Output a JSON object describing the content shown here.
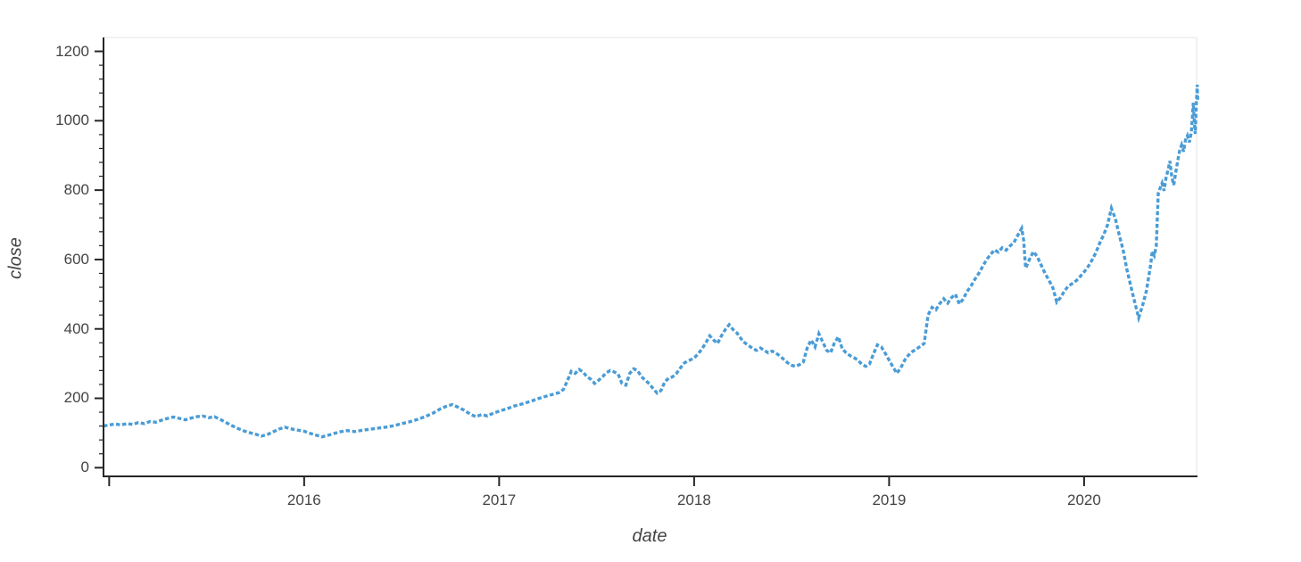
{
  "toolbar": {
    "logo": "bokeh-logo",
    "tools": [
      {
        "name": "pan",
        "icon": "pan-move-icon",
        "active": false
      },
      {
        "name": "box-zoom",
        "icon": "box-zoom-icon",
        "active": false
      },
      {
        "name": "wheel-zoom",
        "icon": "wheel-zoom-icon",
        "active": false
      },
      {
        "name": "save",
        "icon": "save-icon",
        "active": false
      },
      {
        "name": "reset",
        "icon": "reset-icon",
        "active": false
      },
      {
        "name": "hover",
        "icon": "hover-icon",
        "active": true
      }
    ]
  },
  "chart_data": {
    "type": "line",
    "title": "",
    "xlabel": "date",
    "ylabel": "close",
    "x_axis_type": "datetime-years",
    "x_range": [
      2014.971,
      2020.577
    ],
    "y_range": [
      -25,
      1240
    ],
    "x_ticks": [
      2016,
      2017,
      2018,
      2019,
      2020
    ],
    "x_tick_labels": [
      "2016",
      "2017",
      "2018",
      "2019",
      "2020"
    ],
    "x_unlabeled_ticks": [
      2015
    ],
    "y_ticks": [
      0,
      200,
      400,
      600,
      800,
      1000,
      1200
    ],
    "y_tick_labels": [
      "0",
      "200",
      "400",
      "600",
      "800",
      "1000",
      "1200"
    ],
    "y_minor_step": 40,
    "grid": false,
    "legend": "none",
    "line_color": "#4a9cd6",
    "line_dash": "dashed",
    "axis_color": "#262626",
    "tick_label_color": "#444444",
    "outline_color": "#e5e5e5",
    "series": [
      {
        "name": "close",
        "points": [
          [
            2014.971,
            120
          ],
          [
            2015.0,
            123
          ],
          [
            2015.03,
            126
          ],
          [
            2015.06,
            123
          ],
          [
            2015.09,
            127
          ],
          [
            2015.12,
            125
          ],
          [
            2015.15,
            130
          ],
          [
            2015.18,
            127
          ],
          [
            2015.21,
            133
          ],
          [
            2015.24,
            131
          ],
          [
            2015.27,
            137
          ],
          [
            2015.3,
            142
          ],
          [
            2015.33,
            146
          ],
          [
            2015.36,
            142
          ],
          [
            2015.39,
            138
          ],
          [
            2015.42,
            143
          ],
          [
            2015.45,
            147
          ],
          [
            2015.48,
            149
          ],
          [
            2015.51,
            144
          ],
          [
            2015.54,
            147
          ],
          [
            2015.57,
            139
          ],
          [
            2015.6,
            130
          ],
          [
            2015.63,
            121
          ],
          [
            2015.66,
            113
          ],
          [
            2015.69,
            106
          ],
          [
            2015.72,
            101
          ],
          [
            2015.75,
            97
          ],
          [
            2015.78,
            91
          ],
          [
            2015.81,
            95
          ],
          [
            2015.84,
            103
          ],
          [
            2015.87,
            111
          ],
          [
            2015.9,
            117
          ],
          [
            2015.93,
            112
          ],
          [
            2015.96,
            109
          ],
          [
            2016.0,
            105
          ],
          [
            2016.03,
            99
          ],
          [
            2016.06,
            94
          ],
          [
            2016.09,
            89
          ],
          [
            2016.12,
            93
          ],
          [
            2016.15,
            98
          ],
          [
            2016.18,
            103
          ],
          [
            2016.22,
            107
          ],
          [
            2016.26,
            104
          ],
          [
            2016.3,
            108
          ],
          [
            2016.34,
            111
          ],
          [
            2016.38,
            114
          ],
          [
            2016.42,
            117
          ],
          [
            2016.46,
            121
          ],
          [
            2016.5,
            127
          ],
          [
            2016.54,
            132
          ],
          [
            2016.58,
            139
          ],
          [
            2016.62,
            147
          ],
          [
            2016.66,
            157
          ],
          [
            2016.7,
            170
          ],
          [
            2016.73,
            177
          ],
          [
            2016.76,
            182
          ],
          [
            2016.79,
            174
          ],
          [
            2016.82,
            166
          ],
          [
            2016.85,
            155
          ],
          [
            2016.88,
            147
          ],
          [
            2016.91,
            153
          ],
          [
            2016.94,
            149
          ],
          [
            2016.97,
            157
          ],
          [
            2017.0,
            163
          ],
          [
            2017.04,
            170
          ],
          [
            2017.08,
            178
          ],
          [
            2017.12,
            184
          ],
          [
            2017.16,
            191
          ],
          [
            2017.2,
            199
          ],
          [
            2017.24,
            206
          ],
          [
            2017.28,
            212
          ],
          [
            2017.31,
            217
          ],
          [
            2017.33,
            226
          ],
          [
            2017.35,
            250
          ],
          [
            2017.37,
            278
          ],
          [
            2017.39,
            272
          ],
          [
            2017.41,
            283
          ],
          [
            2017.43,
            276
          ],
          [
            2017.45,
            262
          ],
          [
            2017.47,
            255
          ],
          [
            2017.49,
            243
          ],
          [
            2017.51,
            252
          ],
          [
            2017.53,
            262
          ],
          [
            2017.55,
            274
          ],
          [
            2017.57,
            280
          ],
          [
            2017.59,
            276
          ],
          [
            2017.61,
            270
          ],
          [
            2017.63,
            243
          ],
          [
            2017.65,
            238
          ],
          [
            2017.67,
            272
          ],
          [
            2017.69,
            285
          ],
          [
            2017.71,
            280
          ],
          [
            2017.73,
            262
          ],
          [
            2017.75,
            252
          ],
          [
            2017.77,
            242
          ],
          [
            2017.79,
            228
          ],
          [
            2017.81,
            215
          ],
          [
            2017.83,
            222
          ],
          [
            2017.85,
            248
          ],
          [
            2017.87,
            258
          ],
          [
            2017.89,
            262
          ],
          [
            2017.91,
            272
          ],
          [
            2017.93,
            288
          ],
          [
            2017.95,
            302
          ],
          [
            2017.97,
            308
          ],
          [
            2018.0,
            316
          ],
          [
            2018.02,
            328
          ],
          [
            2018.04,
            342
          ],
          [
            2018.06,
            360
          ],
          [
            2018.08,
            380
          ],
          [
            2018.1,
            368
          ],
          [
            2018.12,
            358
          ],
          [
            2018.14,
            380
          ],
          [
            2018.16,
            398
          ],
          [
            2018.18,
            412
          ],
          [
            2018.2,
            398
          ],
          [
            2018.22,
            388
          ],
          [
            2018.24,
            372
          ],
          [
            2018.26,
            360
          ],
          [
            2018.28,
            352
          ],
          [
            2018.3,
            344
          ],
          [
            2018.32,
            338
          ],
          [
            2018.34,
            345
          ],
          [
            2018.36,
            338
          ],
          [
            2018.38,
            331
          ],
          [
            2018.4,
            336
          ],
          [
            2018.42,
            330
          ],
          [
            2018.44,
            322
          ],
          [
            2018.46,
            312
          ],
          [
            2018.48,
            302
          ],
          [
            2018.5,
            295
          ],
          [
            2018.52,
            292
          ],
          [
            2018.54,
            297
          ],
          [
            2018.56,
            305
          ],
          [
            2018.58,
            345
          ],
          [
            2018.6,
            368
          ],
          [
            2018.62,
            348
          ],
          [
            2018.64,
            386
          ],
          [
            2018.66,
            362
          ],
          [
            2018.68,
            338
          ],
          [
            2018.7,
            331
          ],
          [
            2018.72,
            360
          ],
          [
            2018.74,
            377
          ],
          [
            2018.76,
            342
          ],
          [
            2018.78,
            331
          ],
          [
            2018.8,
            323
          ],
          [
            2018.82,
            317
          ],
          [
            2018.84,
            310
          ],
          [
            2018.86,
            298
          ],
          [
            2018.88,
            292
          ],
          [
            2018.9,
            299
          ],
          [
            2018.92,
            328
          ],
          [
            2018.94,
            354
          ],
          [
            2018.96,
            348
          ],
          [
            2018.98,
            330
          ],
          [
            2019.0,
            310
          ],
          [
            2019.02,
            290
          ],
          [
            2019.04,
            272
          ],
          [
            2019.06,
            288
          ],
          [
            2019.08,
            310
          ],
          [
            2019.1,
            325
          ],
          [
            2019.12,
            335
          ],
          [
            2019.14,
            342
          ],
          [
            2019.16,
            350
          ],
          [
            2019.18,
            358
          ],
          [
            2019.2,
            440
          ],
          [
            2019.22,
            462
          ],
          [
            2019.24,
            455
          ],
          [
            2019.26,
            473
          ],
          [
            2019.28,
            487
          ],
          [
            2019.3,
            474
          ],
          [
            2019.32,
            490
          ],
          [
            2019.34,
            500
          ],
          [
            2019.36,
            472
          ],
          [
            2019.38,
            486
          ],
          [
            2019.4,
            508
          ],
          [
            2019.42,
            524
          ],
          [
            2019.44,
            543
          ],
          [
            2019.46,
            560
          ],
          [
            2019.48,
            580
          ],
          [
            2019.5,
            600
          ],
          [
            2019.52,
            614
          ],
          [
            2019.54,
            628
          ],
          [
            2019.56,
            621
          ],
          [
            2019.58,
            634
          ],
          [
            2019.6,
            627
          ],
          [
            2019.62,
            639
          ],
          [
            2019.64,
            649
          ],
          [
            2019.66,
            670
          ],
          [
            2019.68,
            690
          ],
          [
            2019.69,
            655
          ],
          [
            2019.7,
            575
          ],
          [
            2019.72,
            600
          ],
          [
            2019.74,
            623
          ],
          [
            2019.76,
            608
          ],
          [
            2019.78,
            584
          ],
          [
            2019.8,
            560
          ],
          [
            2019.82,
            540
          ],
          [
            2019.84,
            518
          ],
          [
            2019.86,
            477
          ],
          [
            2019.88,
            491
          ],
          [
            2019.9,
            510
          ],
          [
            2019.92,
            524
          ],
          [
            2019.94,
            531
          ],
          [
            2019.96,
            539
          ],
          [
            2019.98,
            551
          ],
          [
            2020.0,
            564
          ],
          [
            2020.02,
            579
          ],
          [
            2020.04,
            598
          ],
          [
            2020.06,
            619
          ],
          [
            2020.08,
            647
          ],
          [
            2020.1,
            671
          ],
          [
            2020.12,
            699
          ],
          [
            2020.14,
            748
          ],
          [
            2020.16,
            718
          ],
          [
            2020.18,
            672
          ],
          [
            2020.2,
            628
          ],
          [
            2020.22,
            570
          ],
          [
            2020.24,
            522
          ],
          [
            2020.26,
            477
          ],
          [
            2020.28,
            432
          ],
          [
            2020.3,
            468
          ],
          [
            2020.32,
            510
          ],
          [
            2020.34,
            580
          ],
          [
            2020.35,
            625
          ],
          [
            2020.36,
            612
          ],
          [
            2020.37,
            638
          ],
          [
            2020.38,
            790
          ],
          [
            2020.39,
            806
          ],
          [
            2020.4,
            820
          ],
          [
            2020.41,
            798
          ],
          [
            2020.42,
            835
          ],
          [
            2020.43,
            857
          ],
          [
            2020.44,
            884
          ],
          [
            2020.45,
            838
          ],
          [
            2020.46,
            815
          ],
          [
            2020.47,
            851
          ],
          [
            2020.48,
            884
          ],
          [
            2020.49,
            914
          ],
          [
            2020.5,
            930
          ],
          [
            2020.51,
            911
          ],
          [
            2020.52,
            944
          ],
          [
            2020.53,
            957
          ],
          [
            2020.54,
            938
          ],
          [
            2020.55,
            967
          ],
          [
            2020.555,
            1008
          ],
          [
            2020.56,
            1052
          ],
          [
            2020.565,
            998
          ],
          [
            2020.57,
            962
          ],
          [
            2020.575,
            1042
          ],
          [
            2020.58,
            1104
          ],
          [
            2020.583,
            1058
          ]
        ]
      }
    ]
  }
}
